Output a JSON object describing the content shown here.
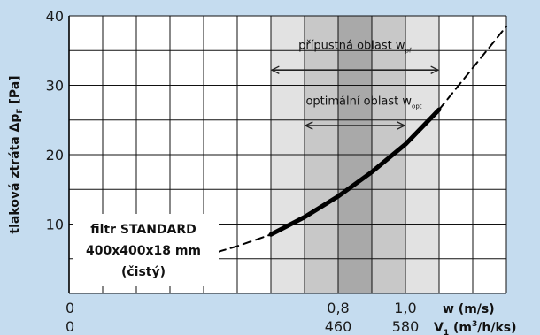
{
  "chart_data": {
    "type": "line",
    "ylabel": "tlaková ztráta Δp",
    "ylabel_sub": "F",
    "ylabel_unit": "[Pa]",
    "ylim": [
      0,
      40
    ],
    "yticks": [
      10,
      20,
      30,
      40
    ],
    "xlim": [
      0,
      1.3
    ],
    "grid": true,
    "x_axis_1": {
      "label": "w (m/s)",
      "ticks": [
        {
          "x": 0,
          "label": "0"
        },
        {
          "x": 0.8,
          "label": "0,8"
        },
        {
          "x": 1.0,
          "label": "1,0"
        }
      ]
    },
    "x_axis_2": {
      "label_prefix": "V",
      "label_sub": "1",
      "label_suffix": " (m³/h/ks)",
      "ticks": [
        {
          "x": 0,
          "label": "0"
        },
        {
          "x": 0.8,
          "label": "460"
        },
        {
          "x": 1.0,
          "label": "580"
        }
      ]
    },
    "regions": [
      {
        "name": "přípustná oblast",
        "sub": "př",
        "x": [
          0.6,
          1.1
        ],
        "color": "#e2e2e2"
      },
      {
        "name": "optimální oblast",
        "sub": "opt",
        "x": [
          0.7,
          1.0
        ],
        "color": "#c8c8c8"
      },
      {
        "name": "",
        "x": [
          0.8,
          0.9
        ],
        "color": "#a9a9a9"
      }
    ],
    "series": [
      {
        "style": "dashed",
        "x": [
          0.33,
          0.4,
          0.5,
          0.6
        ],
        "y": [
          4.2,
          5.4,
          6.8,
          8.5
        ]
      },
      {
        "style": "solid",
        "x": [
          0.6,
          0.7,
          0.8,
          0.9,
          1.0,
          1.1
        ],
        "y": [
          8.5,
          11.0,
          14.0,
          17.5,
          21.5,
          26.5
        ]
      },
      {
        "style": "dashed",
        "x": [
          1.1,
          1.2,
          1.3
        ],
        "y": [
          26.5,
          32.5,
          38.5
        ]
      }
    ],
    "annotation": {
      "lines": [
        "filtr STANDARD",
        "400x400x18 mm",
        "(čistý)"
      ]
    },
    "colors": {
      "background": "#c5dcef",
      "plot": "#ffffff",
      "grid": "#111111",
      "curve": "#000000"
    }
  }
}
